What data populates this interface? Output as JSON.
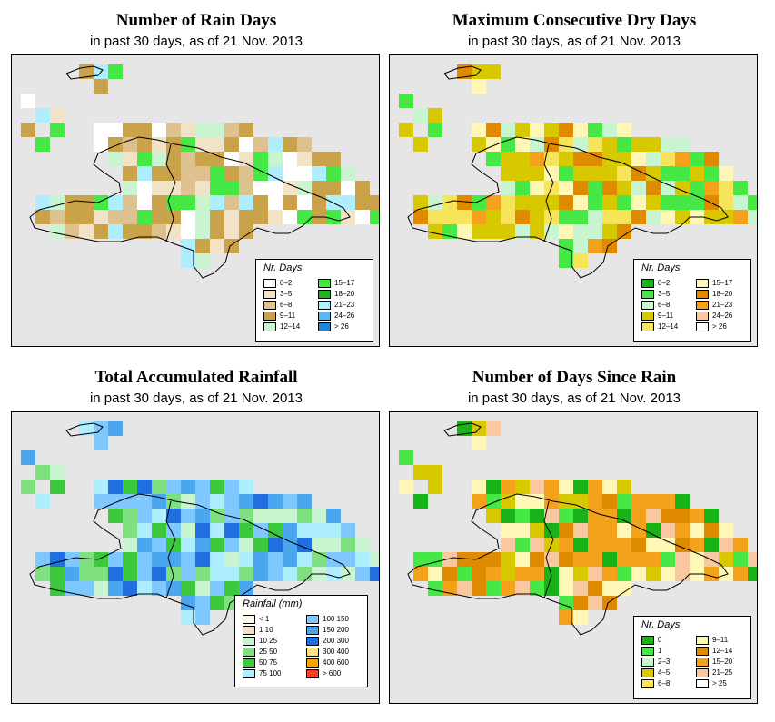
{
  "panels": [
    {
      "title": "Number of Rain Days",
      "subtitle": "in past 30 days, as of  21 Nov. 2013",
      "legend": {
        "title": "Nr. Days",
        "items": [
          {
            "label": "0–2",
            "color": "#ffffff"
          },
          {
            "label": "3–5",
            "color": "#f2e2c6"
          },
          {
            "label": "6–8",
            "color": "#ddc28f"
          },
          {
            "label": "9–11",
            "color": "#c9a24a"
          },
          {
            "label": "12–14",
            "color": "#c8f5cf"
          },
          {
            "label": "15–17",
            "color": "#46e846"
          },
          {
            "label": "18–20",
            "color": "#1fb31f"
          },
          {
            "label": "21–23",
            "color": "#aeeeff"
          },
          {
            "label": "24–26",
            "color": "#55b8f0"
          },
          {
            "label": "> 26",
            "color": "#1f86d6"
          }
        ]
      }
    },
    {
      "title": "Maximum Consecutive Dry Days",
      "subtitle": "in past 30 days, as of  21 Nov. 2013",
      "legend": {
        "title": "Nr. Days",
        "items": [
          {
            "label": "0–2",
            "color": "#19b319"
          },
          {
            "label": "3–5",
            "color": "#46e846"
          },
          {
            "label": "6–8",
            "color": "#c8f5cf"
          },
          {
            "label": "9–11",
            "color": "#d8c800"
          },
          {
            "label": "12–14",
            "color": "#f6e45a"
          },
          {
            "label": "15–17",
            "color": "#fff7b5"
          },
          {
            "label": "18–20",
            "color": "#e08a00"
          },
          {
            "label": "21–23",
            "color": "#f4a21c"
          },
          {
            "label": "24–26",
            "color": "#f9c8a0"
          },
          {
            "label": "> 26",
            "color": "#ffffff"
          }
        ]
      }
    },
    {
      "title": "Total Accumulated Rainfall",
      "subtitle": "in past 30 days, as of  21 Nov. 2013",
      "legend": {
        "title": "Rainfall (mm)",
        "items": [
          {
            "label": "< 1",
            "color": "#fff7e6"
          },
          {
            "label": "1    10",
            "color": "#f2e2c6"
          },
          {
            "label": "10    25",
            "color": "#c8f5cf"
          },
          {
            "label": "25    50",
            "color": "#7fe07f"
          },
          {
            "label": "50    75",
            "color": "#3cc83c"
          },
          {
            "label": "75  100",
            "color": "#aeeeff"
          },
          {
            "label": "100  150",
            "color": "#7fc8ff"
          },
          {
            "label": "150  200",
            "color": "#4ba6f0"
          },
          {
            "label": "200  300",
            "color": "#1f6fe0"
          },
          {
            "label": "300  400",
            "color": "#ffe680"
          },
          {
            "label": "400  600",
            "color": "#f5a500"
          },
          {
            "label": "> 600",
            "color": "#ff3c1e"
          }
        ]
      }
    },
    {
      "title": "Number of Days Since Rain",
      "subtitle": "in past 30 days, as of  21 Nov. 2013",
      "legend": {
        "title": "Nr. Days",
        "items": [
          {
            "label": "0",
            "color": "#19b319"
          },
          {
            "label": "1",
            "color": "#46e846"
          },
          {
            "label": "2–3",
            "color": "#c8f5cf"
          },
          {
            "label": "4–5",
            "color": "#d8c800"
          },
          {
            "label": "6–8",
            "color": "#f6e45a"
          },
          {
            "label": "9–11",
            "color": "#fff7b5"
          },
          {
            "label": "12–14",
            "color": "#e08a00"
          },
          {
            "label": "15–20",
            "color": "#f4a21c"
          },
          {
            "label": "21–25",
            "color": "#f9c8a0"
          },
          {
            "label": "> 25",
            "color": "#ffffff"
          }
        ]
      }
    }
  ]
}
